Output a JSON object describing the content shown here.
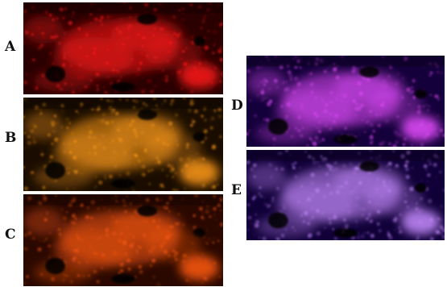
{
  "figure": {
    "panels": [
      {
        "label": "A",
        "tint": "#ff1a1a",
        "dark": "#2a0000"
      },
      {
        "label": "B",
        "tint": "#ff9a1a",
        "dark": "#1a0d00"
      },
      {
        "label": "C",
        "tint": "#ff5a12",
        "dark": "#2a0800"
      },
      {
        "label": "D",
        "tint": "#e64dff",
        "dark": "#14003a"
      },
      {
        "label": "E",
        "tint": "#c78cff",
        "dark": "#100038"
      }
    ]
  }
}
